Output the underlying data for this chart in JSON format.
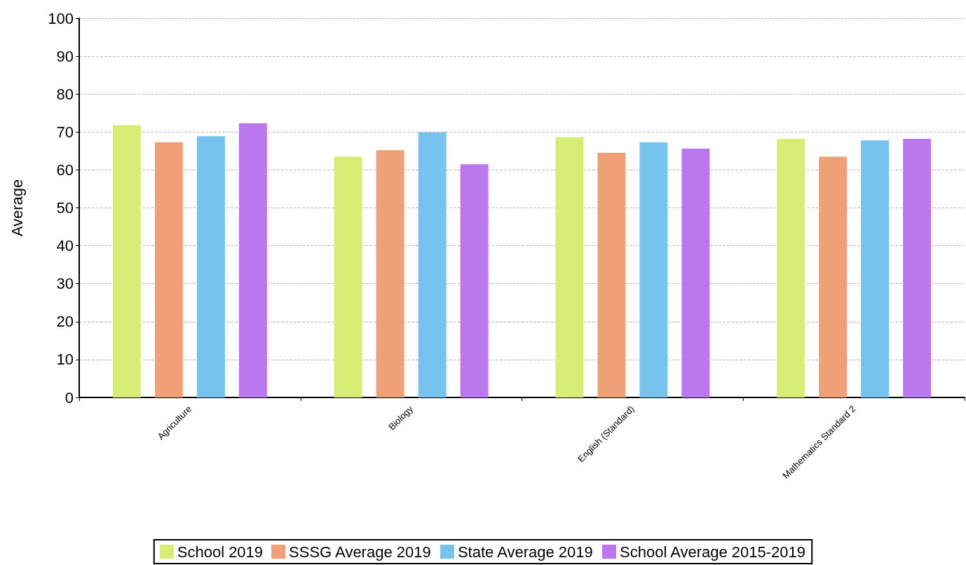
{
  "chart_data": {
    "type": "bar",
    "ylabel": "Average",
    "categories": [
      "Agriculture",
      "Biology",
      "English (Standard)",
      "Mathematics Standard 2"
    ],
    "series": [
      {
        "name": "School 2019",
        "color": "#d8ed76",
        "values": [
          71.8,
          63.5,
          68.6,
          68.2
        ]
      },
      {
        "name": "SSSG Average 2019",
        "color": "#efa077",
        "values": [
          67.3,
          65.2,
          64.5,
          63.5
        ]
      },
      {
        "name": "State Average 2019",
        "color": "#76c3ee",
        "values": [
          68.9,
          69.9,
          67.3,
          67.8
        ]
      },
      {
        "name": "School Average 2015-2019",
        "color": "#ba77ee",
        "values": [
          72.3,
          61.5,
          65.6,
          68.2
        ]
      }
    ],
    "ylim": [
      0,
      100
    ],
    "yticks": [
      0,
      10,
      20,
      30,
      40,
      50,
      60,
      70,
      80,
      90,
      100
    ],
    "grid": "y",
    "legend": "bottom"
  }
}
